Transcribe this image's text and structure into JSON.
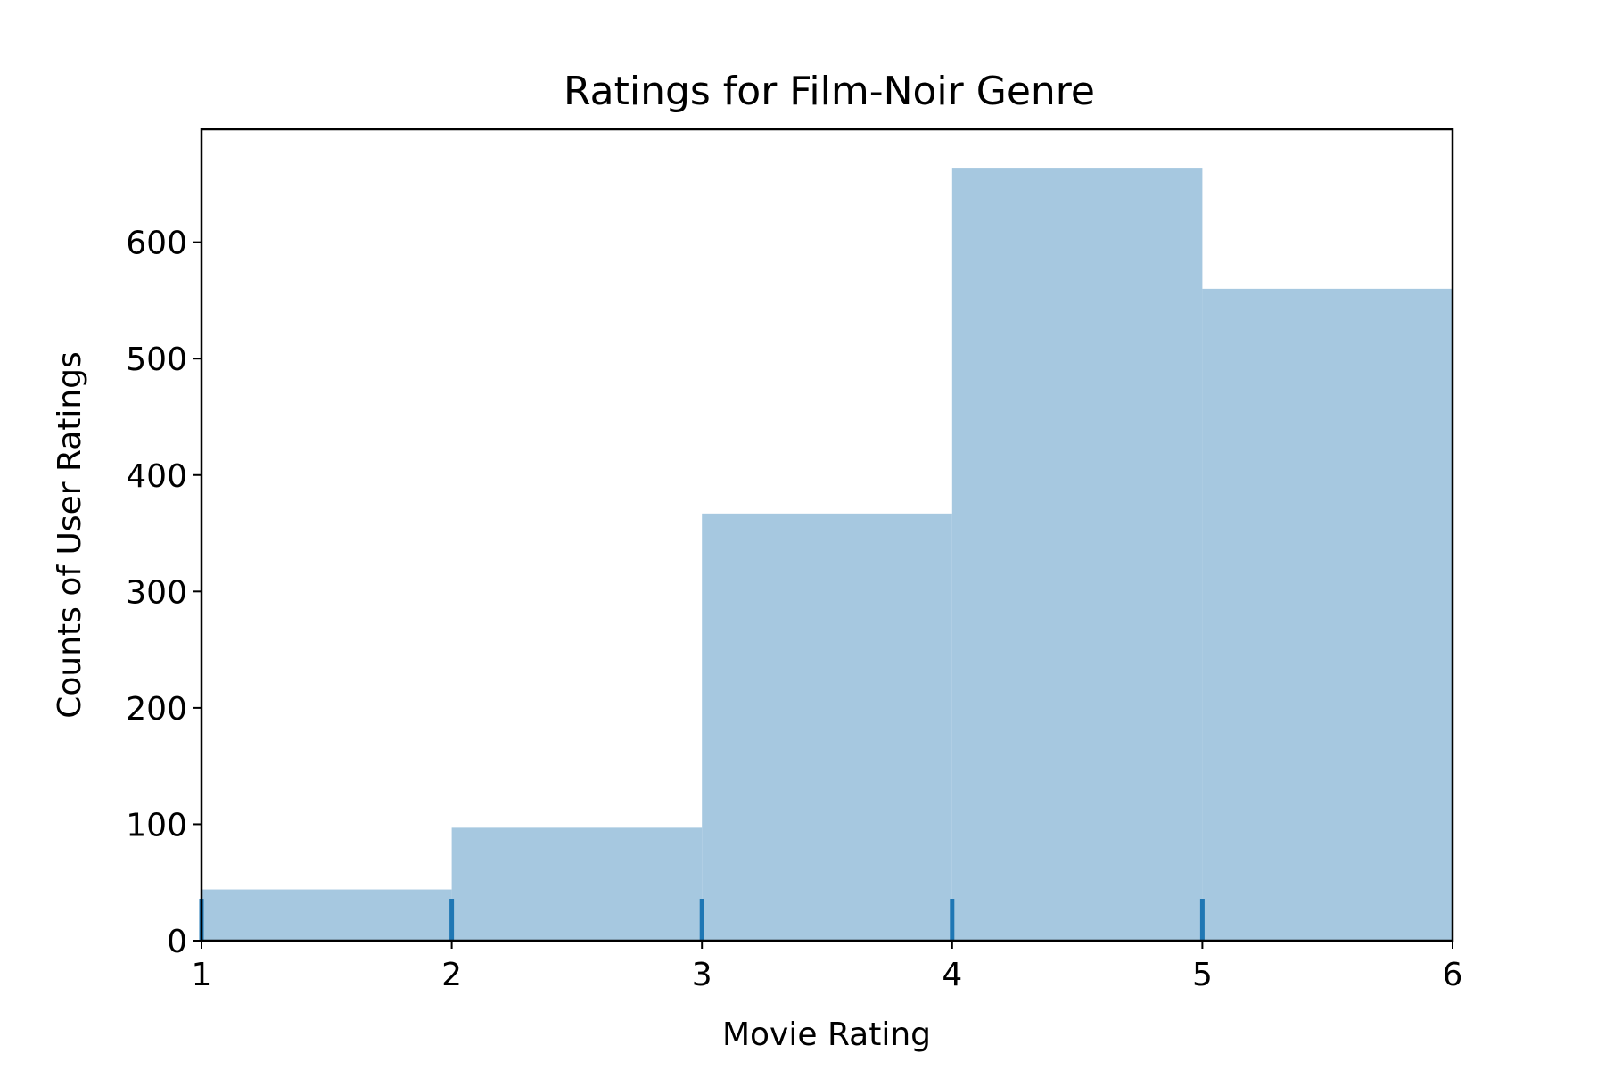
{
  "chart_data": {
    "type": "bar",
    "title": "Ratings for Film-Noir Genre",
    "xlabel": "Movie Rating",
    "ylabel": "Counts of User Ratings",
    "bins": [
      {
        "x0": 1,
        "x1": 2,
        "count": 44
      },
      {
        "x0": 2,
        "x1": 3,
        "count": 97
      },
      {
        "x0": 3,
        "x1": 4,
        "count": 367
      },
      {
        "x0": 4,
        "x1": 5,
        "count": 664
      },
      {
        "x0": 5,
        "x1": 6,
        "count": 560
      }
    ],
    "rug_x": [
      1,
      2,
      3,
      4,
      5
    ],
    "xlim": [
      1,
      6
    ],
    "ylim": [
      0,
      697
    ],
    "xticks": [
      1,
      2,
      3,
      4,
      5,
      6
    ],
    "yticks": [
      0,
      100,
      200,
      300,
      400,
      500,
      600
    ],
    "grid": false,
    "colors": {
      "bar_fill": "#a6c8e0",
      "rug": "#1f77b4",
      "axes": "#000000"
    }
  }
}
